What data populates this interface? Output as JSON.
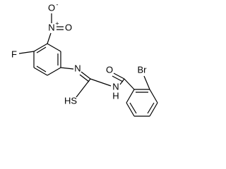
{
  "atoms": [
    "F",
    "N",
    "+",
    "O",
    "-",
    "O",
    "N",
    "HS",
    "N",
    "H",
    "O",
    "Br"
  ]
}
